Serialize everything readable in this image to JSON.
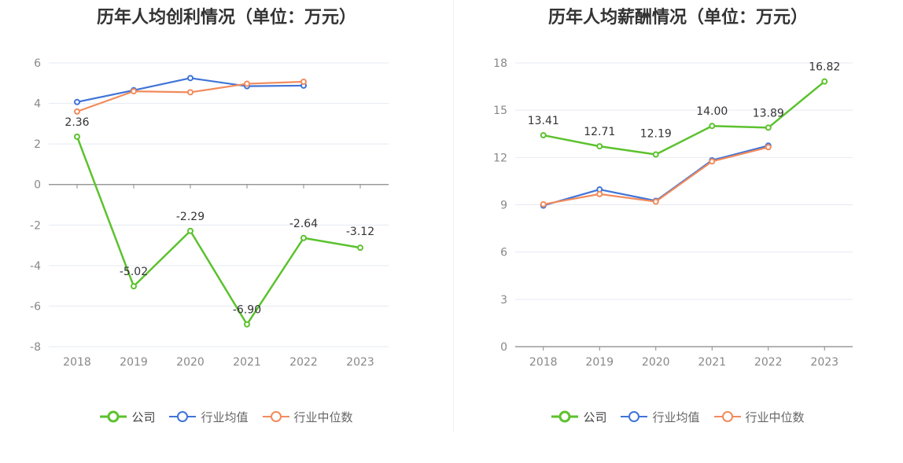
{
  "colors": {
    "company": "#5cc22e",
    "industry_avg": "#3f74d8",
    "industry_median": "#f28b5c",
    "grid": "#e6e9f2",
    "axis": "#888888"
  },
  "legend_labels": [
    "公司",
    "行业均值",
    "行业中位数"
  ],
  "chart_data": [
    {
      "type": "line",
      "title": "历年人均创利情况（单位：万元）",
      "categories": [
        "2018",
        "2019",
        "2020",
        "2021",
        "2022",
        "2023"
      ],
      "ylim": [
        -8,
        6
      ],
      "yticks": [
        -8,
        -6,
        -4,
        -2,
        0,
        2,
        4,
        6
      ],
      "series": [
        {
          "name": "公司",
          "key": "company",
          "values": [
            2.36,
            -5.02,
            -2.29,
            -6.9,
            -2.64,
            -3.12
          ],
          "labels": [
            "2.36",
            "-5.02",
            "-2.29",
            "-6.90",
            "-2.64",
            "-3.12"
          ]
        },
        {
          "name": "行业均值",
          "key": "industry_avg",
          "values": [
            4.07,
            4.65,
            5.25,
            4.85,
            4.88,
            null
          ]
        },
        {
          "name": "行业中位数",
          "key": "industry_median",
          "values": [
            3.6,
            4.6,
            4.55,
            4.97,
            5.07,
            null
          ]
        }
      ]
    },
    {
      "type": "line",
      "title": "历年人均薪酬情况（单位：万元）",
      "categories": [
        "2018",
        "2019",
        "2020",
        "2021",
        "2022",
        "2023"
      ],
      "ylim": [
        0,
        18
      ],
      "yticks": [
        0,
        3,
        6,
        9,
        12,
        15,
        18
      ],
      "series": [
        {
          "name": "公司",
          "key": "company",
          "values": [
            13.41,
            12.71,
            12.19,
            14.0,
            13.89,
            16.82
          ],
          "labels": [
            "13.41",
            "12.71",
            "12.19",
            "14.00",
            "13.89",
            "16.82"
          ]
        },
        {
          "name": "行业均值",
          "key": "industry_avg",
          "values": [
            8.95,
            9.97,
            9.25,
            11.82,
            12.75,
            null
          ]
        },
        {
          "name": "行业中位数",
          "key": "industry_median",
          "values": [
            9.03,
            9.68,
            9.2,
            11.75,
            12.65,
            null
          ]
        }
      ]
    }
  ]
}
